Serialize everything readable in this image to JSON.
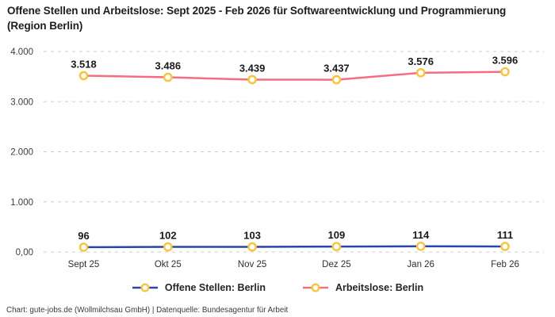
{
  "title": "Offene Stellen und Arbeitslose: Sept 2025 - Feb 2026 für Softwareentwicklung und Programmierung (Region Berlin)",
  "footer": "Chart: gute-jobs.de (Wollmilchsau GmbH) | Datenquelle: Bundesagentur für Arbeit",
  "colors": {
    "grid": "#cdcdcd",
    "marker_fill": "#ffffff",
    "marker_stroke": "#fbc437",
    "series_blue": "#2b44a7",
    "series_pink": "#f56d80"
  },
  "chart_data": {
    "type": "line",
    "title": "Offene Stellen und Arbeitslose: Sept 2025 - Feb 2026 für Softwareentwicklung und Programmierung (Region Berlin)",
    "categories": [
      "Sept 25",
      "Okt 25",
      "Nov 25",
      "Dez 25",
      "Jan 26",
      "Feb 26"
    ],
    "series": [
      {
        "name": "Offene Stellen: Berlin",
        "color": "#2b44a7",
        "values": [
          96,
          102,
          103,
          109,
          114,
          111
        ],
        "labels": [
          "96",
          "102",
          "103",
          "109",
          "114",
          "111"
        ]
      },
      {
        "name": "Arbeitslose: Berlin",
        "color": "#f56d80",
        "values": [
          3518,
          3486,
          3439,
          3437,
          3576,
          3596
        ],
        "labels": [
          "3.518",
          "3.486",
          "3.439",
          "3.437",
          "3.576",
          "3.596"
        ]
      }
    ],
    "ylim": [
      0,
      4000
    ],
    "y_ticks": [
      {
        "value": 0,
        "label": "0,00"
      },
      {
        "value": 1000,
        "label": "1.000"
      },
      {
        "value": 2000,
        "label": "2.000"
      },
      {
        "value": 3000,
        "label": "3.000"
      },
      {
        "value": 4000,
        "label": "4.000"
      }
    ],
    "grid": "horizontal-dashed",
    "legend_position": "bottom",
    "xlabel": "",
    "ylabel": ""
  }
}
